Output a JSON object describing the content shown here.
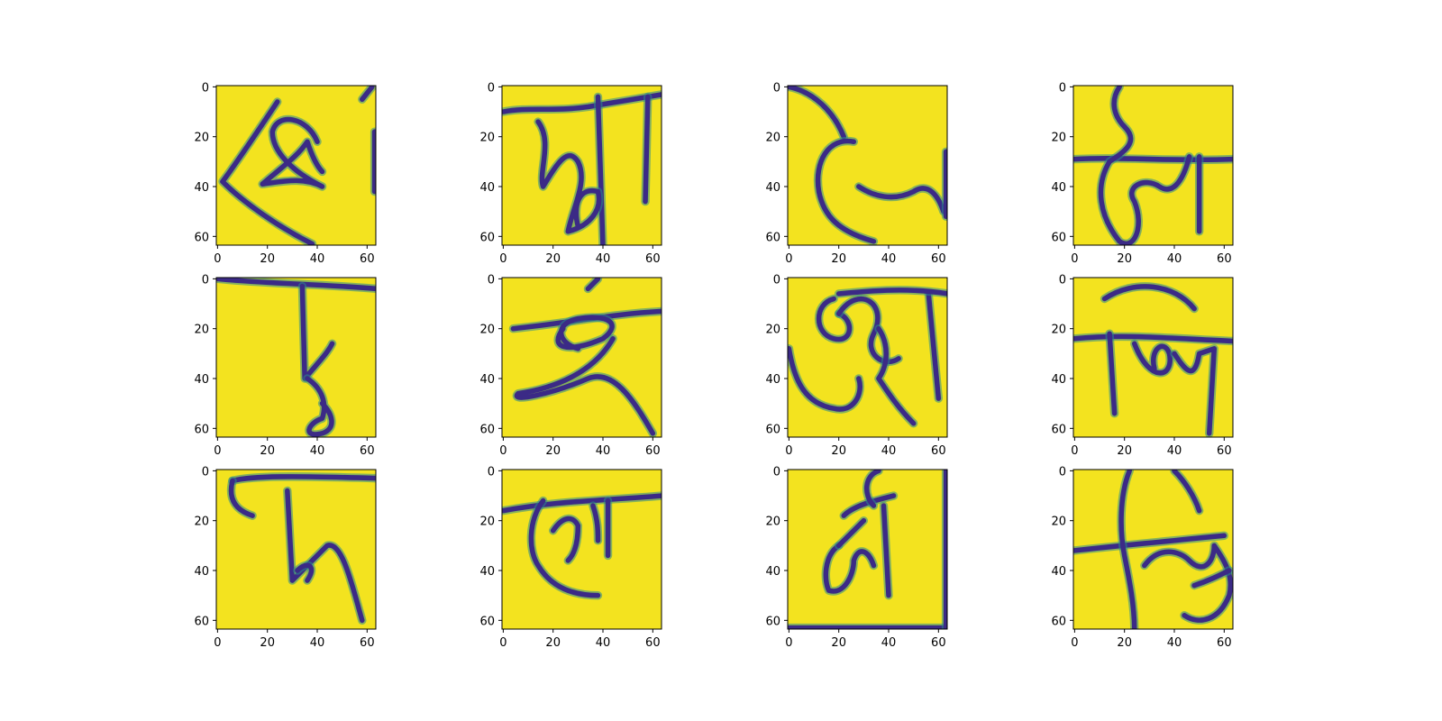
{
  "chart_data": {
    "type": "image-grid",
    "layout": {
      "rows": 3,
      "cols": 4
    },
    "colors": {
      "background": "#f3e31f",
      "ink": "#3b2a86",
      "ink_edge": "#2a8a8c",
      "axis": "#000000"
    },
    "x_ticks": [
      "0",
      "20",
      "40",
      "60"
    ],
    "y_ticks": [
      "0",
      "20",
      "40",
      "60"
    ],
    "xlim": [
      -0.5,
      63.5
    ],
    "ylim": [
      63.5,
      -0.5
    ],
    "panels": [
      {
        "id": "r1c1",
        "strokes": [
          "M24 6 C16 18 8 30 2 38 C10 46 24 56 38 63",
          "M40 22 C36 12 24 10 22 18 C22 26 30 34 42 40 C34 36 26 38 18 39 C26 32 32 28 36 22 C38 28 40 32 42 34",
          "M63 18 L63 42",
          "M58 5 L62 0"
        ]
      },
      {
        "id": "r1c2",
        "strokes": [
          "M0 10 C10 8 20 10 34 8 L64 3",
          "M38 4 L40 64",
          "M58 4 L57 46",
          "M14 14 C20 22 14 34 16 40 C22 30 26 24 30 30 C34 38 28 48 26 58 C34 56 40 50 38 42 C30 40 28 48 30 56"
        ]
      },
      {
        "id": "r1c3",
        "strokes": [
          "M0 0 C10 2 18 10 22 20",
          "M26 22 C16 20 10 30 12 42 C14 52 20 58 34 62",
          "M28 40 C34 44 42 46 50 42 C56 38 60 44 62 50",
          "M63 26 L63 52"
        ]
      },
      {
        "id": "r1c4",
        "strokes": [
          "M0 29 C20 28 40 30 64 29",
          "M18 0 C14 6 16 12 20 16 C26 22 20 26 14 30 C8 40 10 52 18 62 C24 66 28 56 24 46 C20 40 28 36 34 40 C40 44 44 36 46 28",
          "M50 28 L50 58"
        ]
      },
      {
        "id": "r2c1",
        "strokes": [
          "M0 0 C20 2 40 2 64 4",
          "M34 3 L35 40 C40 34 44 30 46 26",
          "M36 40 C42 44 44 50 42 56 C36 58 34 64 42 62 C48 60 46 54 42 50"
        ]
      },
      {
        "id": "r2c2",
        "strokes": [
          "M4 20 C24 18 44 14 64 13",
          "M34 4 L38 0",
          "M24 20 C18 28 26 30 40 24 C48 18 42 14 30 16 C20 18 22 26 30 28",
          "M44 24 C36 38 20 44 6 46 C2 50 20 46 34 40 C44 36 52 48 60 62"
        ]
      },
      {
        "id": "r2c3",
        "strokes": [
          "M0 28 C2 40 6 50 18 52 C26 54 30 46 28 40",
          "M18 8 C10 10 10 22 18 24 C26 26 26 16 20 14",
          "M20 14 C28 2 40 10 34 22 C30 30 38 36 44 32",
          "M36 20 C40 26 40 34 36 40 C40 46 44 52 50 58",
          "M56 6 L60 48",
          "M20 6 C40 4 50 4 64 6"
        ]
      },
      {
        "id": "r2c4",
        "strokes": [
          "M0 24 C20 22 40 24 64 25",
          "M12 8 C24 0 40 2 48 12",
          "M14 22 L16 54",
          "M24 26 C30 42 40 40 38 30 C36 24 30 28 32 36",
          "M40 30 C44 36 48 42 50 30 L56 28 L54 62"
        ]
      },
      {
        "id": "r3c1",
        "strokes": [
          "M6 4 C14 2 30 2 64 3",
          "M6 4 C4 12 8 16 14 18",
          "M28 8 L30 44 C34 40 40 34 44 30 C50 28 54 46 58 60",
          "M32 40 C36 36 40 38 36 44"
        ]
      },
      {
        "id": "r3c2",
        "strokes": [
          "M0 16 C22 12 40 12 64 10",
          "M16 12 C10 20 10 32 14 38 C20 48 30 50 38 50",
          "M20 24 C24 18 28 18 30 22 C30 30 28 34 26 36",
          "M42 12 L42 34",
          "M36 14 C38 20 38 24 38 28"
        ]
      },
      {
        "id": "r3c3",
        "strokes": [
          "M22 18 C26 14 34 12 42 10",
          "M36 0 C30 2 30 10 34 14",
          "M20 30 C14 34 14 44 16 48 C22 50 26 42 26 36 C28 30 32 32 34 38",
          "M38 14 L40 50",
          "M30 20 C26 24 22 28 20 30",
          "M0 63 L64 63",
          "M63 0 L63 63"
        ]
      },
      {
        "id": "r3c4",
        "strokes": [
          "M0 32 C18 30 40 28 60 26",
          "M22 0 C18 10 18 24 20 34 C22 44 24 54 24 64",
          "M40 0 C44 4 48 10 50 16",
          "M28 38 C34 30 42 32 46 36 C52 42 56 36 56 30 C60 36 64 42 62 50 C58 60 50 62 44 58",
          "M48 46 C54 44 58 42 62 40"
        ]
      }
    ]
  }
}
